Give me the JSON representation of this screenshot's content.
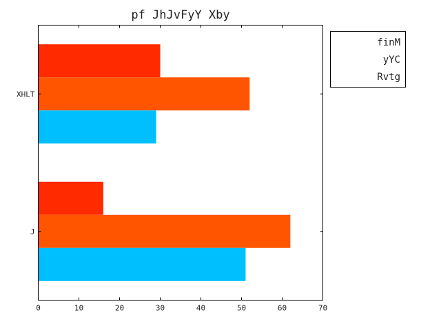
{
  "chart_data": {
    "type": "bar",
    "orientation": "horizontal",
    "title": "pf JhJvFyY Xby",
    "xlabel": "",
    "ylabel": "",
    "xlim": [
      0,
      70
    ],
    "x_ticks": [
      "0",
      "10",
      "20",
      "30",
      "40",
      "50",
      "60",
      "70"
    ],
    "categories": [
      "J",
      "XHLT"
    ],
    "series": [
      {
        "name": "finM",
        "color": "#ff2a00",
        "values": [
          16,
          30
        ]
      },
      {
        "name": "yYC",
        "color": "#ff5500",
        "values": [
          62,
          52
        ]
      },
      {
        "name": "Rvtg",
        "color": "#00bfff",
        "values": [
          51,
          29
        ]
      }
    ],
    "legend_position": "upper right, outside plot",
    "grid": false
  }
}
